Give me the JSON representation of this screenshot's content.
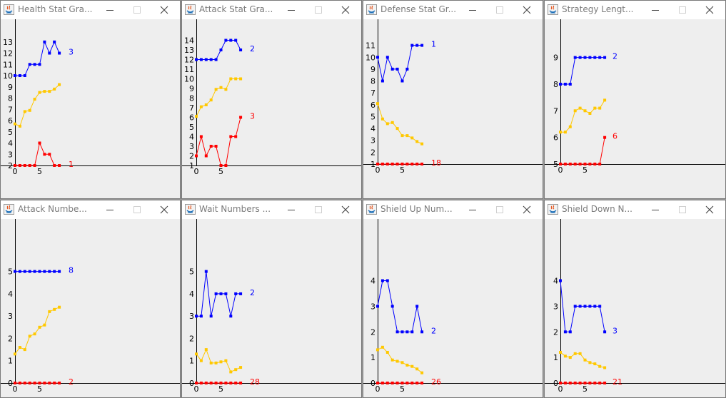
{
  "windows": [
    {
      "id": "health",
      "title": "Health Stat Gra...",
      "chart_data": {
        "type": "line",
        "ylim": [
          2,
          14
        ],
        "yticks": [
          2,
          3,
          4,
          5,
          6,
          7,
          8,
          9,
          10,
          11,
          12,
          13
        ],
        "xticks": [
          0,
          5
        ],
        "x": [
          0,
          1,
          2,
          3,
          4,
          5,
          6,
          7,
          8,
          9
        ],
        "series": [
          {
            "color": "#0000ff",
            "values": [
              10,
              10,
              10,
              11,
              11,
              11,
              13,
              12,
              13,
              12
            ],
            "end_label": "3"
          },
          {
            "color": "#ffc800",
            "values": [
              5.7,
              5.5,
              6.8,
              6.9,
              7.9,
              8.5,
              8.6,
              8.6,
              8.8,
              9.2
            ]
          },
          {
            "color": "#ff0000",
            "values": [
              2,
              2,
              2,
              2,
              2,
              4,
              3,
              3,
              2,
              2
            ],
            "end_label": "1"
          }
        ]
      }
    },
    {
      "id": "attack",
      "title": "Attack Stat Gra...",
      "chart_data": {
        "type": "line",
        "ylim": [
          1,
          15
        ],
        "yticks": [
          1,
          2,
          3,
          4,
          5,
          6,
          7,
          8,
          9,
          10,
          11,
          12,
          13,
          14
        ],
        "xticks": [
          0,
          5
        ],
        "x": [
          0,
          1,
          2,
          3,
          4,
          5,
          6,
          7,
          8,
          9
        ],
        "series": [
          {
            "color": "#0000ff",
            "values": [
              12,
              12,
              12,
              12,
              12,
              13,
              14,
              14,
              14,
              13
            ],
            "end_label": "2"
          },
          {
            "color": "#ffc800",
            "values": [
              6.1,
              7.1,
              7.3,
              7.8,
              8.9,
              9.1,
              8.9,
              10,
              10,
              10
            ]
          },
          {
            "color": "#ff0000",
            "values": [
              2,
              4,
              2,
              3,
              3,
              1,
              1,
              4,
              4,
              6
            ],
            "end_label": "3"
          }
        ]
      }
    },
    {
      "id": "defense",
      "title": "Defense Stat Gr...",
      "chart_data": {
        "type": "line",
        "ylim": [
          1,
          12
        ],
        "yticks": [
          1,
          2,
          3,
          4,
          5,
          6,
          7,
          8,
          9,
          10,
          11
        ],
        "xticks": [
          0,
          5
        ],
        "x": [
          0,
          1,
          2,
          3,
          4,
          5,
          6,
          7,
          8,
          9
        ],
        "series": [
          {
            "color": "#0000ff",
            "values": [
              10,
              8,
              10,
              9,
              9,
              8,
              9,
              11,
              11,
              11
            ],
            "end_label": "1"
          },
          {
            "color": "#ffc800",
            "values": [
              6.1,
              4.8,
              4.4,
              4.5,
              4,
              3.4,
              3.4,
              3.2,
              2.9,
              2.7
            ]
          },
          {
            "color": "#ff0000",
            "values": [
              1,
              1,
              1,
              1,
              1,
              1,
              1,
              1,
              1,
              1
            ],
            "end_label": "18"
          }
        ]
      }
    },
    {
      "id": "strategy",
      "title": "Strategy Lengt...",
      "chart_data": {
        "type": "line",
        "ylim": [
          5,
          9.9
        ],
        "yticks": [
          5,
          6,
          7,
          8,
          9
        ],
        "xticks": [
          0,
          5
        ],
        "x": [
          0,
          1,
          2,
          3,
          4,
          5,
          6,
          7,
          8,
          9
        ],
        "series": [
          {
            "color": "#0000ff",
            "values": [
              8,
              8,
              8,
              9,
              9,
              9,
              9,
              9,
              9,
              9
            ],
            "end_label": "2"
          },
          {
            "color": "#ffc800",
            "values": [
              6.2,
              6.2,
              6.4,
              7,
              7.1,
              7,
              6.9,
              7.1,
              7.1,
              7.4
            ]
          },
          {
            "color": "#ff0000",
            "values": [
              5,
              5,
              5,
              5,
              5,
              5,
              5,
              5,
              5,
              6
            ],
            "end_label": "6"
          }
        ]
      }
    },
    {
      "id": "attack-numbers",
      "title": "Attack Numbe...",
      "chart_data": {
        "type": "line",
        "ylim": [
          0,
          5.5
        ],
        "yticks": [
          0,
          1,
          2,
          3,
          4,
          5
        ],
        "xticks": [
          0,
          5
        ],
        "x": [
          0,
          1,
          2,
          3,
          4,
          5,
          6,
          7,
          8,
          9
        ],
        "series": [
          {
            "color": "#0000ff",
            "values": [
              5,
              5,
              5,
              5,
              5,
              5,
              5,
              5,
              5,
              5
            ],
            "end_label": "8"
          },
          {
            "color": "#ffc800",
            "values": [
              1.3,
              1.6,
              1.5,
              2.1,
              2.2,
              2.5,
              2.6,
              3.2,
              3.3,
              3.4
            ]
          },
          {
            "color": "#ff0000",
            "values": [
              0,
              0,
              0,
              0,
              0,
              0,
              0,
              0,
              0,
              0
            ],
            "end_label": "2"
          }
        ]
      }
    },
    {
      "id": "wait-numbers",
      "title": "Wait Numbers ...",
      "chart_data": {
        "type": "line",
        "ylim": [
          0,
          5.5
        ],
        "yticks": [
          0,
          1,
          2,
          3,
          4,
          5
        ],
        "xticks": [
          0,
          5
        ],
        "x": [
          0,
          1,
          2,
          3,
          4,
          5,
          6,
          7,
          8,
          9
        ],
        "series": [
          {
            "color": "#0000ff",
            "values": [
              3,
              3,
              5,
              3,
              4,
              4,
              4,
              3,
              4,
              4
            ],
            "end_label": "2"
          },
          {
            "color": "#ffc800",
            "values": [
              1.3,
              1,
              1.5,
              0.9,
              0.9,
              0.95,
              1,
              0.5,
              0.6,
              0.7
            ]
          },
          {
            "color": "#ff0000",
            "values": [
              0,
              0,
              0,
              0,
              0,
              0,
              0,
              0,
              0,
              0
            ],
            "end_label": "28"
          }
        ]
      }
    },
    {
      "id": "shield-up",
      "title": "Shield Up Num...",
      "chart_data": {
        "type": "line",
        "ylim": [
          0,
          4.6
        ],
        "yticks": [
          0,
          1,
          2,
          3,
          4
        ],
        "xticks": [
          0,
          5
        ],
        "x": [
          0,
          1,
          2,
          3,
          4,
          5,
          6,
          7,
          8,
          9
        ],
        "series": [
          {
            "color": "#0000ff",
            "values": [
              3,
              4,
              4,
              3,
              2,
              2,
              2,
              2,
              3,
              2
            ],
            "end_label": "2"
          },
          {
            "color": "#ffc800",
            "values": [
              1.3,
              1.4,
              1.2,
              0.9,
              0.85,
              0.8,
              0.7,
              0.65,
              0.55,
              0.4
            ]
          },
          {
            "color": "#ff0000",
            "values": [
              0,
              0,
              0,
              0,
              0,
              0,
              0,
              0,
              0,
              0
            ],
            "end_label": "26"
          }
        ]
      }
    },
    {
      "id": "shield-down",
      "title": "Shield Down N...",
      "chart_data": {
        "type": "line",
        "ylim": [
          0,
          4.6
        ],
        "yticks": [
          0,
          1,
          2,
          3,
          4
        ],
        "xticks": [
          0,
          5
        ],
        "x": [
          0,
          1,
          2,
          3,
          4,
          5,
          6,
          7,
          8,
          9
        ],
        "series": [
          {
            "color": "#0000ff",
            "values": [
              4,
              2,
              2,
              3,
              3,
              3,
              3,
              3,
              3,
              2
            ],
            "end_label": "3"
          },
          {
            "color": "#ffc800",
            "values": [
              1.2,
              1.05,
              1,
              1.15,
              1.15,
              0.9,
              0.8,
              0.75,
              0.65,
              0.6
            ]
          },
          {
            "color": "#ff0000",
            "values": [
              0,
              0,
              0,
              0,
              0,
              0,
              0,
              0,
              0,
              0
            ],
            "end_label": "21"
          }
        ]
      }
    }
  ]
}
